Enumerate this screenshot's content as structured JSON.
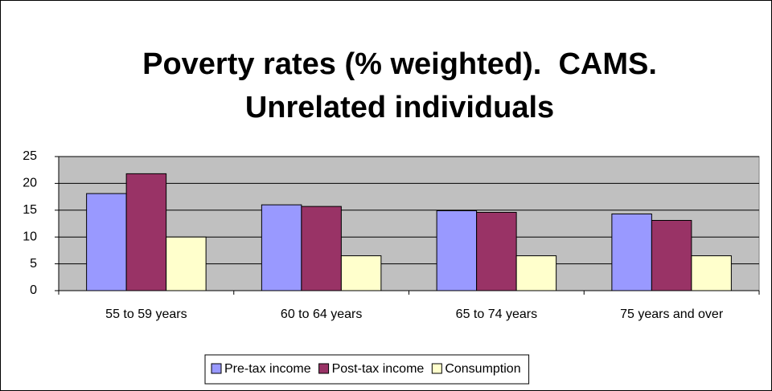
{
  "chart_data": {
    "type": "bar",
    "title": [
      "Poverty rates (% weighted).  CAMS.",
      "Unrelated individuals"
    ],
    "categories": [
      "55 to 59 years",
      "60 to 64 years",
      "65 to 74 years",
      "75 years and over"
    ],
    "series": [
      {
        "name": "Pre-tax income",
        "color": "#9999ff",
        "values": [
          18.1,
          16.0,
          14.9,
          14.3
        ]
      },
      {
        "name": "Post-tax income",
        "color": "#993366",
        "values": [
          21.8,
          15.7,
          14.6,
          13.1
        ]
      },
      {
        "name": "Consumption",
        "color": "#ffffcc",
        "values": [
          10.0,
          6.5,
          6.5,
          6.5
        ]
      }
    ],
    "ylim": [
      0,
      25
    ],
    "yticks": [
      0,
      5,
      10,
      15,
      20,
      25
    ],
    "grid": true,
    "legend": "bottom",
    "plot_background": "#c0c0c0"
  }
}
